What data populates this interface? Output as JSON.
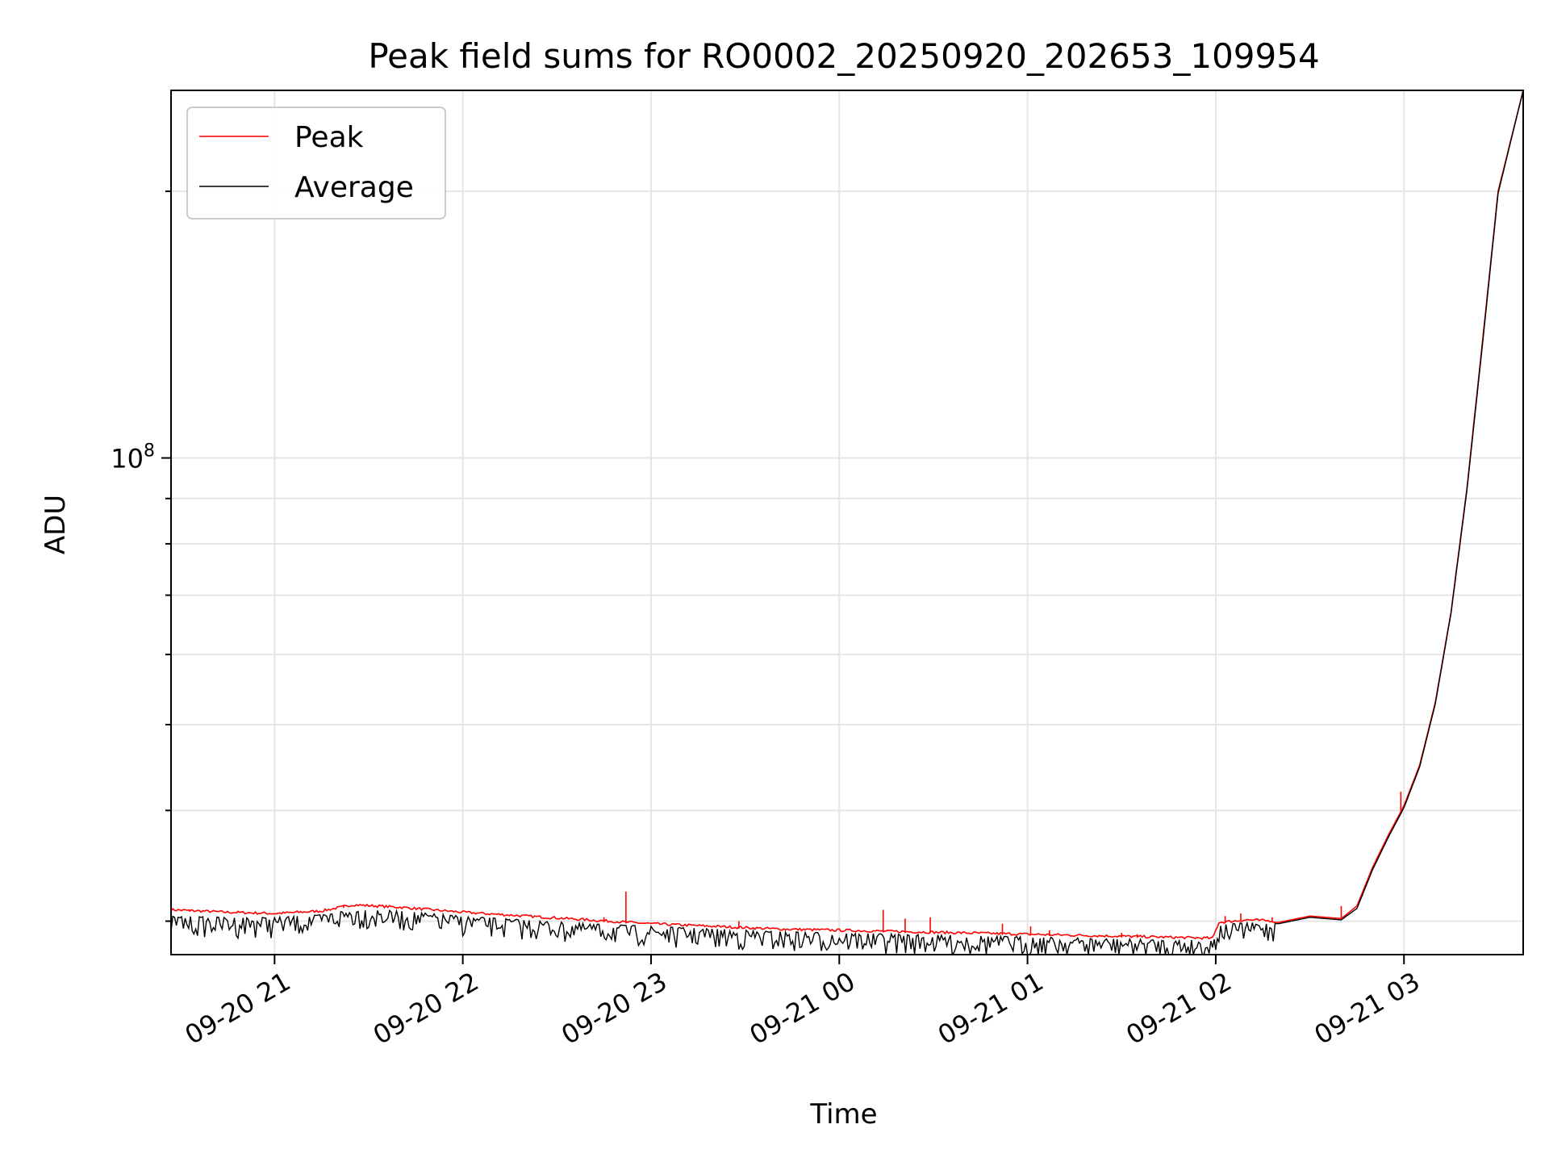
{
  "chart_data": {
    "type": "line",
    "title": "Peak field sums for RO0002_20250920_202653_109954",
    "xlabel": "Time",
    "ylabel": "ADU",
    "yscale": "log",
    "xlim": [
      "2025-09-20 20:27",
      "2025-09-21 03:38"
    ],
    "ylim": [
      27500000.0,
      260000000.0
    ],
    "x_tick_labels": [
      "09-20 21",
      "09-20 22",
      "09-20 23",
      "09-21 00",
      "09-21 01",
      "09-21 02",
      "09-21 03"
    ],
    "x_ticks": [
      "2025-09-20 21:00",
      "2025-09-20 22:00",
      "2025-09-20 23:00",
      "2025-09-21 00:00",
      "2025-09-21 01:00",
      "2025-09-21 02:00",
      "2025-09-21 03:00"
    ],
    "y_tick_label": {
      "base": "10",
      "exp": "8"
    },
    "y_major_tick": 100000000,
    "y_minor_ticks": [
      30000000,
      40000000,
      50000000,
      60000000,
      70000000,
      80000000,
      90000000,
      200000000
    ],
    "grid": true,
    "legend_position": "upper-left",
    "series": [
      {
        "name": "Peak",
        "color": "#ff0000",
        "x": [
          "2025-09-20 20:27",
          "2025-09-20 20:45",
          "2025-09-20 21:00",
          "2025-09-20 21:15",
          "2025-09-20 21:25",
          "2025-09-20 21:40",
          "2025-09-20 22:00",
          "2025-09-20 22:20",
          "2025-09-20 22:40",
          "2025-09-20 23:00",
          "2025-09-20 23:20",
          "2025-09-20 23:40",
          "2025-09-21 00:00",
          "2025-09-21 00:20",
          "2025-09-21 00:40",
          "2025-09-21 01:00",
          "2025-09-21 01:20",
          "2025-09-21 01:40",
          "2025-09-21 01:59",
          "2025-09-21 02:01",
          "2025-09-21 02:10",
          "2025-09-21 02:20",
          "2025-09-21 02:30",
          "2025-09-21 02:40",
          "2025-09-21 02:45",
          "2025-09-21 02:50",
          "2025-09-21 02:55",
          "2025-09-21 03:00",
          "2025-09-21 03:05",
          "2025-09-21 03:10",
          "2025-09-21 03:15",
          "2025-09-21 03:20",
          "2025-09-21 03:25",
          "2025-09-21 03:30",
          "2025-09-21 03:38"
        ],
        "values": [
          30800000,
          30600000,
          30500000,
          30700000,
          31200000,
          31000000,
          30600000,
          30300000,
          30000000,
          29700000,
          29500000,
          29300000,
          29200000,
          29100000,
          29000000,
          28900000,
          28800000,
          28700000,
          28600000,
          29800000,
          30000000,
          29900000,
          30400000,
          30200000,
          31200000,
          34500000,
          37500000,
          40500000,
          45000000,
          53000000,
          67000000,
          92000000,
          135000000,
          200000000,
          260000000
        ]
      },
      {
        "name": "Average",
        "color": "#000000",
        "x": [
          "2025-09-20 20:27",
          "2025-09-20 20:45",
          "2025-09-20 21:00",
          "2025-09-20 21:15",
          "2025-09-20 21:25",
          "2025-09-20 21:40",
          "2025-09-20 22:00",
          "2025-09-20 22:20",
          "2025-09-20 22:40",
          "2025-09-20 23:00",
          "2025-09-20 23:20",
          "2025-09-20 23:40",
          "2025-09-21 00:00",
          "2025-09-21 00:20",
          "2025-09-21 00:40",
          "2025-09-21 01:00",
          "2025-09-21 01:20",
          "2025-09-21 01:40",
          "2025-09-21 01:59",
          "2025-09-21 02:01",
          "2025-09-21 02:10",
          "2025-09-21 02:20",
          "2025-09-21 02:30",
          "2025-09-21 02:40",
          "2025-09-21 02:45",
          "2025-09-21 02:50",
          "2025-09-21 02:55",
          "2025-09-21 03:00",
          "2025-09-21 03:05",
          "2025-09-21 03:10",
          "2025-09-21 03:15",
          "2025-09-21 03:20",
          "2025-09-21 03:25",
          "2025-09-21 03:30",
          "2025-09-21 03:38"
        ],
        "values": [
          30400000,
          30300000,
          30300000,
          30500000,
          31000000,
          30800000,
          30400000,
          30100000,
          29800000,
          29600000,
          29400000,
          29200000,
          29100000,
          29000000,
          28900000,
          28800000,
          28700000,
          28600000,
          28550000,
          29700000,
          29900000,
          29800000,
          30300000,
          30100000,
          31000000,
          34300000,
          37300000,
          40300000,
          44800000,
          52800000,
          66800000,
          91500000,
          134000000,
          199000000,
          260000000
        ]
      }
    ],
    "spikes": {
      "x": [
        "2025-09-20 20:33",
        "2025-09-20 21:22",
        "2025-09-20 22:45",
        "2025-09-20 22:52",
        "2025-09-20 23:28",
        "2025-09-21 00:14",
        "2025-09-21 00:21",
        "2025-09-21 00:29",
        "2025-09-21 00:52",
        "2025-09-21 01:01",
        "2025-09-21 01:07",
        "2025-09-21 01:30",
        "2025-09-21 01:35",
        "2025-09-21 02:03",
        "2025-09-21 02:08",
        "2025-09-21 02:18",
        "2025-09-21 02:40",
        "2025-09-21 02:59"
      ],
      "values": [
        30900000,
        31300000,
        30300000,
        32400000,
        30000000,
        30900000,
        30200000,
        30300000,
        29800000,
        29600000,
        29300000,
        29100000,
        29000000,
        30400000,
        30600000,
        30300000,
        31200000,
        42000000
      ]
    }
  },
  "legend": {
    "peak": "Peak",
    "average": "Average"
  }
}
